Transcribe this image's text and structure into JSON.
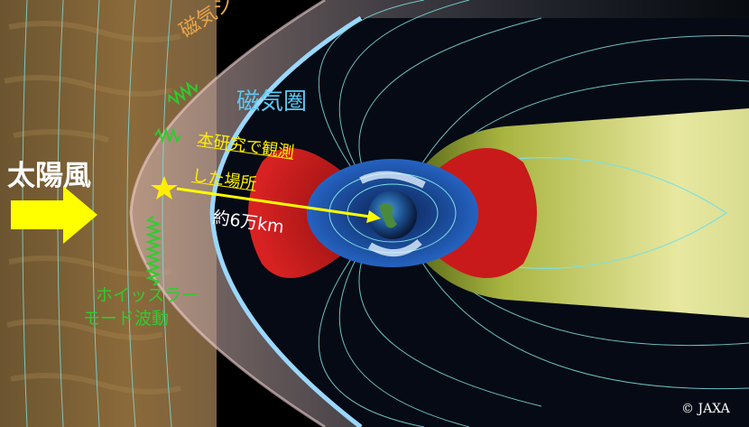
{
  "labels": {
    "solar_wind": "太陽風",
    "magnetosheath": "磁気シース",
    "magnetosphere": "磁気圏",
    "observed_line1": "本研究で観測",
    "observed_line2": "した場所",
    "distance": "約6万km",
    "whistler_line1": "ホイッスラー",
    "whistler_line2": "モード波動",
    "copyright": "© JAXA"
  },
  "colors": {
    "solar_wind_arrow": "#ffff00",
    "distance_arrow": "#ffff00",
    "whistler_wave": "#2ecc2e",
    "observed_label": "#ffee00",
    "magnetosphere_label": "#5ec8f0",
    "magnetosheath_label": "#e8a54a",
    "field_lines": "#7ee0e0",
    "magnetopause": "#9ad8ff",
    "radiation_belt_outer": "#cc1a1a",
    "radiation_belt_inner": "#1a5ac8",
    "plasma_sheet": "#c8d45a"
  }
}
